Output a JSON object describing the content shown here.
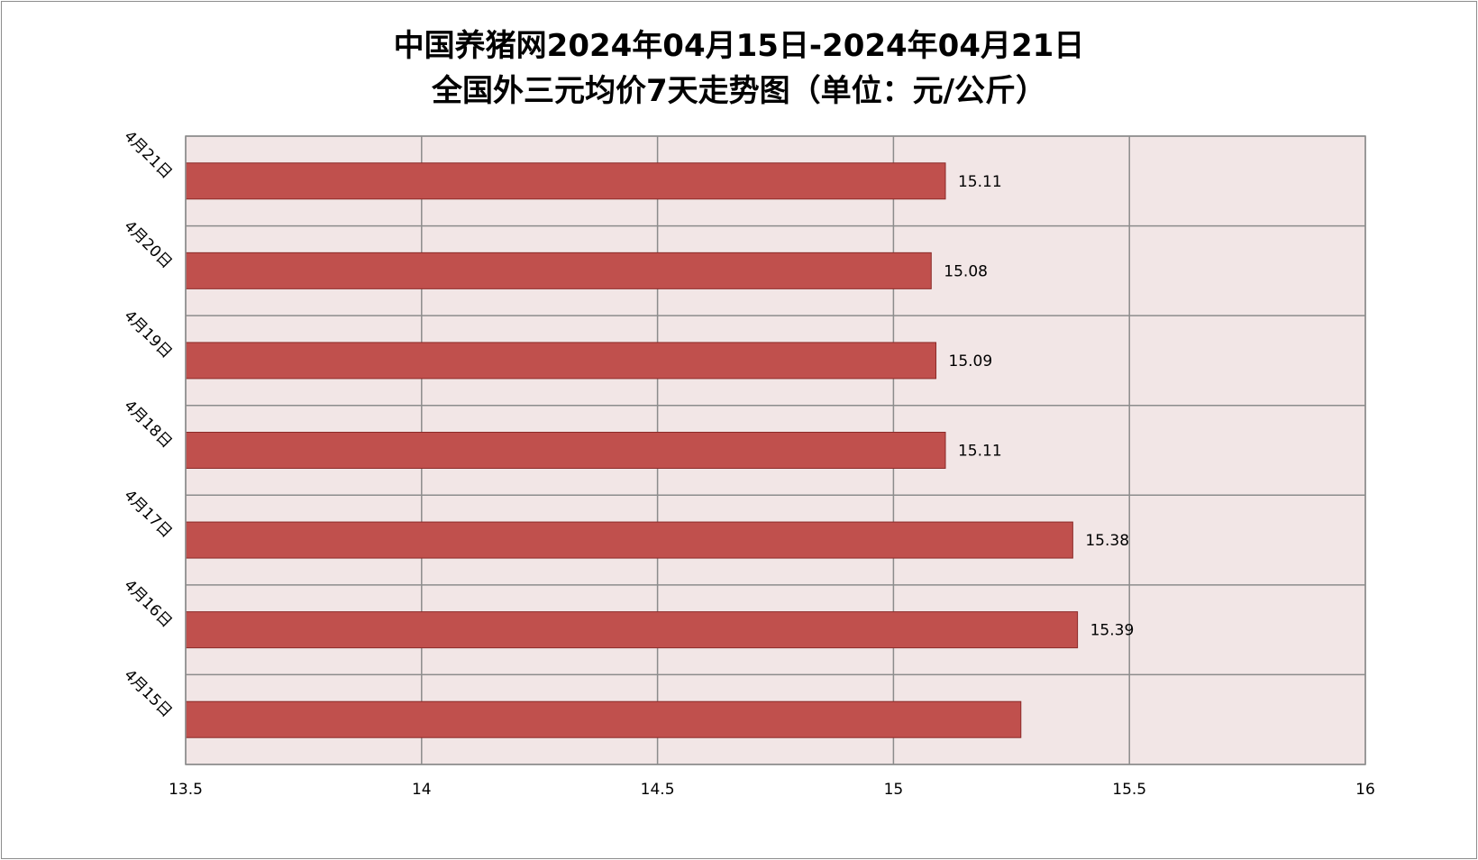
{
  "chart_data": {
    "type": "bar",
    "orientation": "horizontal",
    "title": "中国养猪网2024年04月15日-2024年04月21日",
    "subtitle": "全国外三元均价7天走势图（单位：元/公斤）",
    "categories": [
      "4月21日",
      "4月20日",
      "4月19日",
      "4月18日",
      "4月17日",
      "4月16日",
      "4月15日"
    ],
    "values": [
      15.11,
      15.08,
      15.09,
      15.11,
      15.38,
      15.39,
      15.27
    ],
    "data_labels": [
      "15.11",
      "15.08",
      "15.09",
      "15.11",
      "15.38",
      "15.39",
      ""
    ],
    "xlim": [
      13.5,
      16
    ],
    "xticks": [
      "13.5",
      "14",
      "14.5",
      "15",
      "15.5",
      "16"
    ],
    "xtick_values": [
      13.5,
      14,
      14.5,
      15,
      15.5,
      16
    ],
    "xlabel": "",
    "ylabel": "",
    "grid": true,
    "legend": "none",
    "colors": {
      "bar": "#c0504d",
      "bar_border": "#8b2a28",
      "plot_background": "#f2e6e6",
      "grid": "#8c8c8c"
    }
  }
}
